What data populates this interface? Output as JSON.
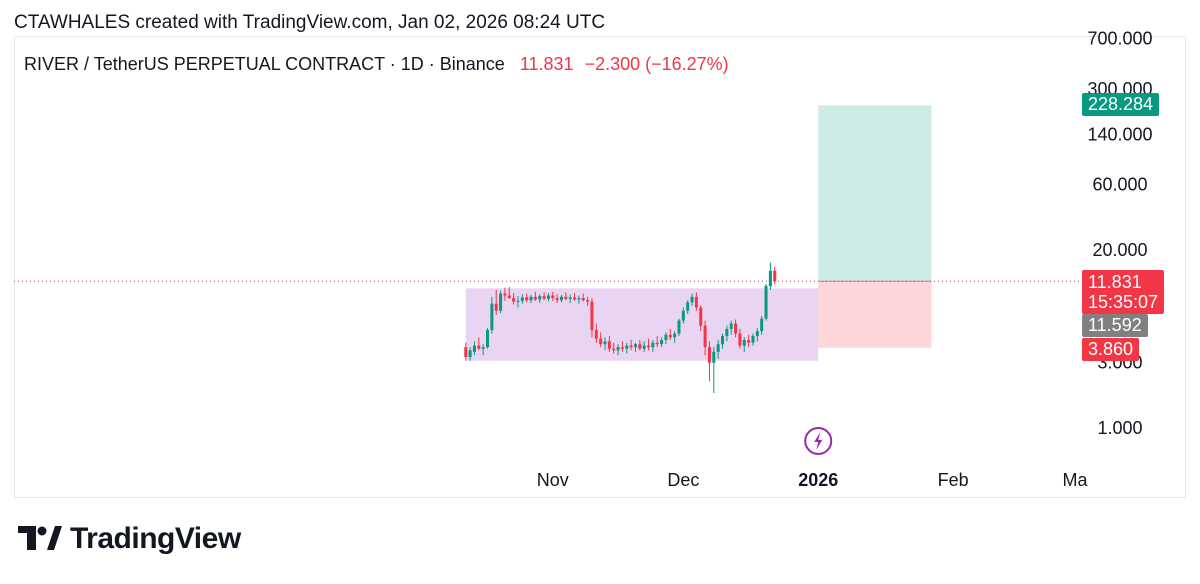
{
  "snapshot_header": "CTAWHALES created with TradingView.com, Jan 02, 2026 08:24 UTC",
  "legend": {
    "symbol": "RIVER / TetherUS PERPETUAL CONTRACT · 1D · Binance",
    "last": "11.831",
    "change": "−2.300 (−16.27%)"
  },
  "brand": {
    "name": "TradingView"
  },
  "price_tags": {
    "target": "228.284",
    "last": "11.831",
    "countdown": "15:35:07",
    "prev_close": "11.592",
    "stop": "3.860"
  },
  "colors": {
    "up": "#089981",
    "down": "#f23645",
    "range_box": "#e1c6ee",
    "profit_zone": "#c6e9e2",
    "loss_zone": "#fcd2d5",
    "last_price_line": "#f23645",
    "target_tag": "#089981",
    "last_tag": "#f23645",
    "prev_close_tag": "#808080",
    "stop_tag": "#f23645",
    "lightning_icon": "#9c27b0"
  },
  "chart_data": {
    "type": "candlestick",
    "y_scale": "log",
    "y_ticks": [
      {
        "value": 700,
        "label": "700.000"
      },
      {
        "value": 300,
        "label": "300.000"
      },
      {
        "value": 140,
        "label": "140.000"
      },
      {
        "value": 60,
        "label": "60.000"
      },
      {
        "value": 20,
        "label": "20.000"
      },
      {
        "value": 3,
        "label": "3.000"
      },
      {
        "value": 1,
        "label": "1.000"
      }
    ],
    "x_ticks": [
      {
        "date": "2025-11-01",
        "label": "Nov"
      },
      {
        "date": "2025-12-01",
        "label": "Dec"
      },
      {
        "date": "2026-01-01",
        "label": "2026"
      },
      {
        "date": "2026-02-01",
        "label": "Feb"
      },
      {
        "date": "2026-03-01",
        "label": "Ma"
      }
    ],
    "x_range": [
      "2025-10-07",
      "2026-03-01"
    ],
    "candle_start_date": "2025-10-12",
    "candles": [
      [
        3.9,
        4.2,
        3.1,
        3.3
      ],
      [
        3.3,
        3.9,
        3.1,
        3.7
      ],
      [
        3.6,
        4.3,
        3.4,
        4.0
      ],
      [
        4.0,
        4.6,
        3.7,
        3.8
      ],
      [
        3.8,
        4.1,
        3.4,
        3.9
      ],
      [
        3.9,
        5.4,
        3.8,
        5.2
      ],
      [
        5.2,
        9.1,
        4.9,
        8.1
      ],
      [
        8.1,
        10.2,
        6.7,
        7.2
      ],
      [
        7.2,
        10.1,
        6.9,
        9.6
      ],
      [
        9.6,
        10.6,
        8.5,
        9.3
      ],
      [
        9.3,
        10.7,
        8.8,
        8.9
      ],
      [
        8.9,
        9.7,
        8.0,
        8.4
      ],
      [
        8.4,
        9.2,
        7.6,
        8.5
      ],
      [
        8.5,
        9.5,
        8.1,
        9.0
      ],
      [
        9.0,
        9.6,
        8.3,
        8.6
      ],
      [
        8.6,
        9.4,
        8.2,
        9.1
      ],
      [
        9.1,
        9.9,
        8.5,
        8.7
      ],
      [
        8.7,
        9.5,
        8.2,
        9.2
      ],
      [
        9.2,
        9.8,
        8.6,
        8.8
      ],
      [
        8.8,
        9.7,
        8.4,
        9.3
      ],
      [
        9.3,
        9.9,
        8.5,
        8.9
      ],
      [
        8.9,
        9.5,
        8.2,
        8.6
      ],
      [
        8.6,
        9.4,
        8.3,
        9.1
      ],
      [
        9.1,
        9.8,
        8.6,
        8.8
      ],
      [
        8.8,
        9.4,
        8.2,
        9.0
      ],
      [
        9.0,
        9.7,
        8.5,
        8.7
      ],
      [
        8.7,
        9.3,
        8.1,
        8.9
      ],
      [
        8.9,
        9.6,
        8.4,
        8.6
      ],
      [
        8.6,
        9.1,
        7.8,
        8.4
      ],
      [
        8.4,
        8.9,
        4.6,
        5.2
      ],
      [
        5.2,
        5.8,
        4.2,
        4.5
      ],
      [
        4.5,
        5.0,
        3.9,
        4.1
      ],
      [
        4.1,
        4.6,
        3.7,
        4.3
      ],
      [
        4.3,
        4.7,
        3.6,
        3.8
      ],
      [
        3.8,
        4.2,
        3.5,
        3.7
      ],
      [
        3.7,
        4.1,
        3.4,
        3.9
      ],
      [
        3.9,
        4.3,
        3.6,
        3.8
      ],
      [
        3.8,
        4.2,
        3.5,
        4.0
      ],
      [
        4.0,
        4.4,
        3.7,
        3.9
      ],
      [
        3.9,
        4.2,
        3.6,
        4.1
      ],
      [
        4.1,
        4.4,
        3.7,
        3.8
      ],
      [
        3.8,
        4.3,
        3.6,
        4.0
      ],
      [
        4.0,
        4.5,
        3.7,
        3.9
      ],
      [
        3.9,
        4.4,
        3.6,
        4.2
      ],
      [
        4.2,
        4.7,
        3.9,
        4.1
      ],
      [
        4.1,
        4.6,
        3.9,
        4.4
      ],
      [
        4.4,
        5.0,
        4.1,
        4.8
      ],
      [
        4.8,
        5.3,
        4.4,
        4.6
      ],
      [
        4.6,
        5.1,
        4.2,
        4.9
      ],
      [
        4.9,
        6.3,
        4.7,
        6.1
      ],
      [
        6.1,
        7.6,
        5.8,
        7.2
      ],
      [
        7.2,
        8.6,
        6.8,
        8.3
      ],
      [
        8.3,
        9.6,
        7.8,
        9.1
      ],
      [
        9.1,
        9.8,
        7.2,
        7.6
      ],
      [
        7.6,
        7.9,
        5.1,
        5.6
      ],
      [
        5.6,
        6.1,
        3.4,
        3.9
      ],
      [
        3.9,
        4.3,
        2.2,
        3.0
      ],
      [
        3.0,
        3.9,
        1.8,
        3.6
      ],
      [
        3.6,
        4.4,
        3.2,
        4.1
      ],
      [
        4.1,
        4.9,
        3.8,
        4.7
      ],
      [
        4.7,
        5.6,
        4.3,
        5.3
      ],
      [
        5.3,
        6.1,
        4.8,
        5.8
      ],
      [
        5.8,
        6.2,
        4.6,
        4.9
      ],
      [
        4.9,
        5.3,
        3.8,
        4.0
      ],
      [
        4.0,
        4.6,
        3.6,
        4.4
      ],
      [
        4.4,
        4.8,
        3.9,
        4.2
      ],
      [
        4.2,
        4.9,
        4.0,
        4.7
      ],
      [
        4.7,
        5.4,
        4.3,
        5.1
      ],
      [
        5.1,
        6.6,
        4.8,
        6.3
      ],
      [
        6.3,
        11.3,
        6.1,
        10.9
      ],
      [
        10.9,
        16.2,
        10.2,
        14.1
      ],
      [
        14.1,
        15.1,
        11.2,
        11.8
      ]
    ],
    "range_box": {
      "from": "2025-10-12",
      "to": "2026-01-01",
      "high": 10.5,
      "low": 3.1
    },
    "position": {
      "type": "long",
      "from": "2026-01-01",
      "to": "2026-01-27",
      "entry": 11.831,
      "target": 228.284,
      "stop": 3.86
    },
    "last_price": 11.831
  }
}
